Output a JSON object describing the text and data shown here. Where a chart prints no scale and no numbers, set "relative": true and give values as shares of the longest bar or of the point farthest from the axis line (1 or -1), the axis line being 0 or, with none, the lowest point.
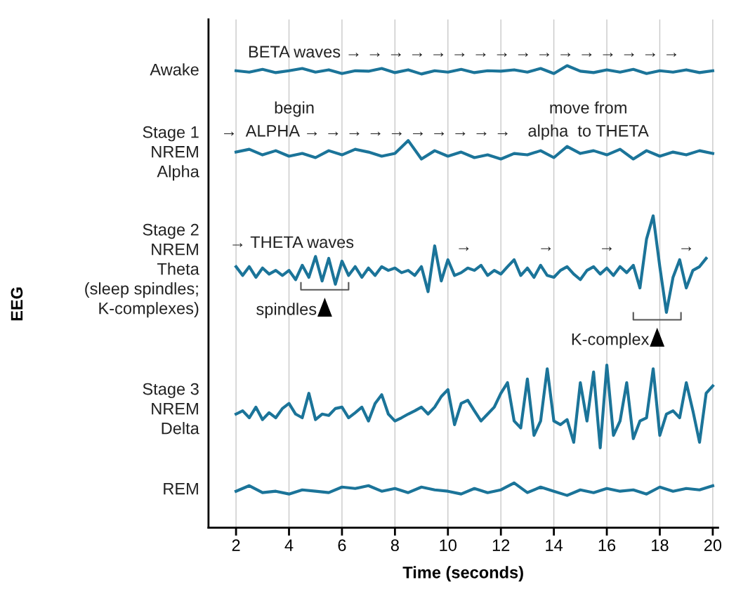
{
  "chart_data": {
    "type": "line",
    "relative": true,
    "xlabel": "Time (seconds)",
    "xlim": [
      0.96,
      20.2
    ],
    "xticks": [
      2,
      4,
      6,
      8,
      10,
      12,
      14,
      16,
      18,
      20
    ],
    "grid": "x",
    "tick_labels": "x",
    "line_style": "solid",
    "marker": "none",
    "series": [
      {
        "name": "Awake",
        "color": "#1b7499",
        "x": [
          2,
          2.5,
          3,
          3.5,
          4,
          4.5,
          5,
          5.5,
          6,
          6.5,
          7,
          7.5,
          8,
          8.5,
          9,
          9.5,
          10,
          10.5,
          11,
          11.5,
          12,
          12.5,
          13,
          13.5,
          14,
          14.5,
          15,
          15.5,
          16,
          16.5,
          17,
          17.5,
          18,
          18.5,
          19,
          19.5,
          20
        ],
        "values": [
          0.989,
          0.986,
          0.992,
          0.985,
          0.989,
          0.994,
          0.986,
          0.991,
          0.983,
          0.989,
          0.988,
          0.994,
          0.985,
          0.991,
          0.982,
          0.989,
          0.986,
          0.992,
          0.985,
          0.989,
          0.988,
          0.991,
          0.986,
          0.994,
          0.983,
          1,
          0.988,
          0.985,
          0.991,
          0.986,
          0.992,
          0.983,
          0.989,
          0.986,
          0.991,
          0.985,
          0.989
        ]
      },
      {
        "name": "Stage 1\nNREM\nAlpha",
        "color": "#1b7499",
        "x": [
          2,
          2.5,
          3,
          3.5,
          4,
          4.5,
          5,
          5.5,
          6,
          6.5,
          7,
          7.5,
          8,
          8.5,
          9,
          9.5,
          10,
          10.5,
          11,
          11.5,
          12,
          12.5,
          13,
          13.5,
          14,
          14.5,
          15,
          15.5,
          16,
          16.5,
          17,
          17.5,
          18,
          18.5,
          19,
          19.5,
          20
        ],
        "values": [
          0.813,
          0.819,
          0.807,
          0.816,
          0.804,
          0.81,
          0.801,
          0.816,
          0.807,
          0.819,
          0.813,
          0.804,
          0.81,
          0.838,
          0.798,
          0.816,
          0.804,
          0.813,
          0.801,
          0.807,
          0.798,
          0.81,
          0.807,
          0.816,
          0.801,
          0.825,
          0.81,
          0.816,
          0.807,
          0.819,
          0.798,
          0.816,
          0.804,
          0.813,
          0.807,
          0.816,
          0.81
        ]
      },
      {
        "name": "Stage 2\nNREM\nTheta\n(sleep spindles;\nK-complexes)",
        "color": "#1b7499",
        "x": [
          2,
          2.25,
          2.5,
          2.75,
          3,
          3.25,
          3.5,
          3.75,
          4,
          4.25,
          4.5,
          4.75,
          5,
          5.25,
          5.5,
          5.75,
          6,
          6.25,
          6.5,
          6.75,
          7,
          7.25,
          7.5,
          7.75,
          8,
          8.25,
          8.5,
          8.75,
          9,
          9.25,
          9.5,
          9.75,
          10,
          10.25,
          10.5,
          10.75,
          11,
          11.25,
          11.5,
          11.75,
          12,
          12.25,
          12.5,
          12.75,
          13,
          13.25,
          13.5,
          13.75,
          14,
          14.25,
          14.5,
          14.75,
          15,
          15.25,
          15.5,
          15.75,
          16,
          16.25,
          16.5,
          16.75,
          17,
          17.25,
          17.5,
          17.75,
          18,
          18.25,
          18.5,
          18.75,
          19,
          19.25,
          19.5,
          19.75
        ],
        "values": [
          0.565,
          0.546,
          0.565,
          0.542,
          0.562,
          0.549,
          0.557,
          0.546,
          0.557,
          0.537,
          0.568,
          0.542,
          0.587,
          0.534,
          0.583,
          0.527,
          0.577,
          0.546,
          0.565,
          0.542,
          0.562,
          0.546,
          0.565,
          0.557,
          0.562,
          0.552,
          0.557,
          0.546,
          0.565,
          0.511,
          0.61,
          0.534,
          0.58,
          0.546,
          0.552,
          0.562,
          0.557,
          0.568,
          0.546,
          0.557,
          0.549,
          0.565,
          0.58,
          0.546,
          0.562,
          0.542,
          0.568,
          0.546,
          0.542,
          0.557,
          0.565,
          0.549,
          0.537,
          0.557,
          0.565,
          0.549,
          0.562,
          0.546,
          0.565,
          0.552,
          0.568,
          0.519,
          0.625,
          0.675,
          0.565,
          0.466,
          0.542,
          0.58,
          0.519,
          0.557,
          0.565,
          0.583
        ]
      },
      {
        "name": "Stage 3\nNREM\nDelta",
        "color": "#1b7499",
        "x": [
          2,
          2.25,
          2.5,
          2.75,
          3,
          3.25,
          3.5,
          3.75,
          4,
          4.25,
          4.5,
          4.75,
          5,
          5.25,
          5.5,
          5.75,
          6,
          6.25,
          6.5,
          6.75,
          7,
          7.25,
          7.5,
          7.75,
          8,
          8.25,
          8.5,
          8.75,
          9,
          9.25,
          9.5,
          9.75,
          10,
          10.25,
          10.5,
          10.75,
          11,
          11.25,
          11.5,
          11.75,
          12,
          12.25,
          12.5,
          12.75,
          13,
          13.25,
          13.5,
          13.75,
          14,
          14.25,
          14.5,
          14.75,
          15,
          15.25,
          15.5,
          15.75,
          16,
          16.25,
          16.5,
          16.75,
          17,
          17.25,
          17.5,
          17.75,
          18,
          18.25,
          18.5,
          18.75,
          19,
          19.25,
          19.5,
          19.75,
          20
        ],
        "values": [
          0.246,
          0.253,
          0.238,
          0.261,
          0.234,
          0.249,
          0.238,
          0.258,
          0.269,
          0.246,
          0.238,
          0.291,
          0.234,
          0.246,
          0.243,
          0.258,
          0.261,
          0.238,
          0.249,
          0.261,
          0.231,
          0.269,
          0.288,
          0.246,
          0.231,
          0.238,
          0.246,
          0.253,
          0.261,
          0.246,
          0.261,
          0.284,
          0.299,
          0.223,
          0.269,
          0.276,
          0.253,
          0.231,
          0.246,
          0.261,
          0.291,
          0.314,
          0.231,
          0.216,
          0.322,
          0.2,
          0.231,
          0.344,
          0.231,
          0.223,
          0.234,
          0.185,
          0.314,
          0.231,
          0.337,
          0.173,
          0.352,
          0.2,
          0.231,
          0.314,
          0.193,
          0.231,
          0.238,
          0.344,
          0.2,
          0.246,
          0.253,
          0.238,
          0.314,
          0.253,
          0.185,
          0.291,
          0.307
        ]
      },
      {
        "name": "REM",
        "color": "#1b7499",
        "x": [
          2,
          2.5,
          3,
          3.5,
          4,
          4.5,
          5,
          5.5,
          6,
          6.5,
          7,
          7.5,
          8,
          8.5,
          9,
          9.5,
          10,
          10.5,
          11,
          11.5,
          12,
          12.5,
          13,
          13.5,
          14,
          14.5,
          15,
          15.5,
          16,
          16.5,
          17,
          17.5,
          18,
          18.5,
          19,
          19.5,
          20
        ],
        "values": [
          0.079,
          0.091,
          0.076,
          0.079,
          0.073,
          0.082,
          0.079,
          0.076,
          0.088,
          0.085,
          0.091,
          0.079,
          0.085,
          0.076,
          0.088,
          0.082,
          0.079,
          0.073,
          0.085,
          0.076,
          0.082,
          0.097,
          0.076,
          0.088,
          0.079,
          0.07,
          0.082,
          0.076,
          0.085,
          0.079,
          0.082,
          0.073,
          0.088,
          0.079,
          0.085,
          0.082,
          0.091
        ]
      }
    ],
    "annotations": [
      "BETA waves → → → → → → → → → → → → → → → →",
      "begin",
      "→  ALPHA → → → → → → → → → →",
      "move from",
      "alpha  to THETA",
      "→ THETA waves",
      "→",
      "→",
      "→",
      "→",
      "spindles",
      "K-complex",
      "EEG"
    ]
  }
}
